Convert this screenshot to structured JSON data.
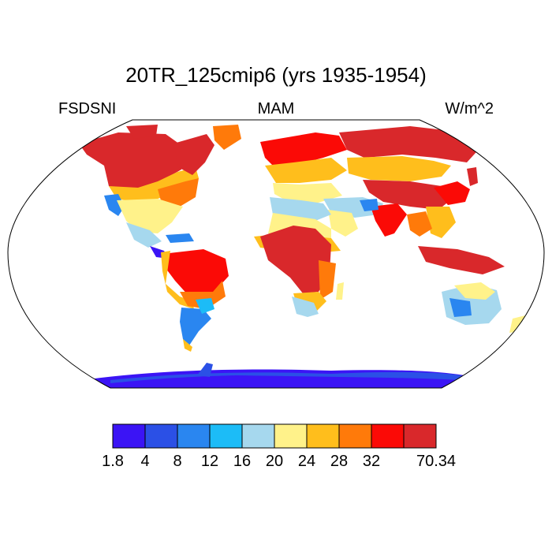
{
  "title": "20TR_125cmip6 (yrs 1935-1954)",
  "left_label": "FSDSNI",
  "center_label": "MAM",
  "right_label": "W/m^2",
  "projection": "Robinson",
  "colorbar": {
    "levels": [
      "1.8",
      "4",
      "8",
      "12",
      "16",
      "20",
      "24",
      "28",
      "32",
      "",
      "70.34"
    ],
    "colors": [
      "#3b14f5",
      "#2b50e6",
      "#2a86f0",
      "#1cbcf7",
      "#a6d8ee",
      "#fff28a",
      "#ffbe1c",
      "#ff7a0a",
      "#fb0a06",
      "#d9282b"
    ]
  },
  "land_colors": {
    "antarctica": "#3b14f5",
    "antarctica_coast": "#2b50e6",
    "greenland": "#d9282b",
    "subtropics_hot": "#d9282b",
    "mid_hot": "#fb0a06",
    "warm": "#ff7a0a",
    "mild": "#ffbe1c",
    "moderate": "#fff28a",
    "cool": "#a6d8ee",
    "cold": "#1cbcf7",
    "colder": "#2a86f0"
  }
}
